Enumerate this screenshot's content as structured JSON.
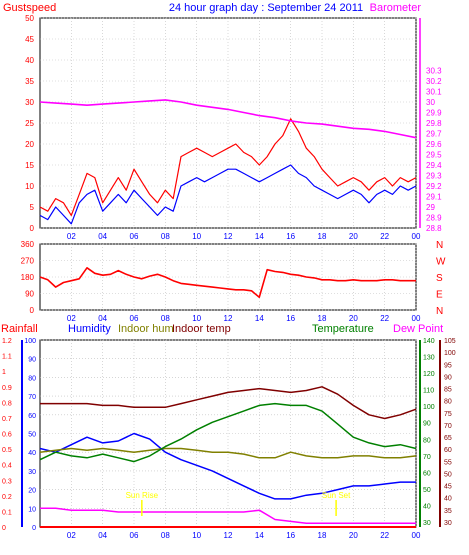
{
  "colors": {
    "background": "#ffffff",
    "gridline": "#bfbfbf",
    "axis": "#000000",
    "gustspeed": "#ff0000",
    "windspeed": "#0000ff",
    "barometer": "#ff00ff",
    "direction": "#ff0000",
    "rainfall": "#ff0000",
    "humidity": "#0000ff",
    "indoor_hum": "#808000",
    "indoor_temp": "#800000",
    "temperature": "#008000",
    "dew_point": "#ff00ff",
    "sun_marker": "#ffff00",
    "title": "#0000ff"
  },
  "header": {
    "title": "24 hour graph day : September 24 2011"
  },
  "chart_data": [
    {
      "type": "line",
      "panel": "wind-barometer",
      "title": "24 hour graph day : September 24 2011",
      "ylabel_left": "Gustspeed",
      "ylabel_right": "Barometer",
      "x_ticks": [
        "02",
        "04",
        "06",
        "08",
        "10",
        "12",
        "14",
        "16",
        "18",
        "20",
        "22",
        "00"
      ],
      "xlim": [
        0,
        24
      ],
      "ylim_left": [
        0,
        50
      ],
      "yticks_left": [
        "0",
        "5",
        "10",
        "15",
        "20",
        "25",
        "30",
        "35",
        "40",
        "45",
        "50"
      ],
      "ylim_right": [
        28.8,
        30.8
      ],
      "yticks_right": [
        "28.8",
        "28.9",
        "29",
        "29.1",
        "29.2",
        "29.3",
        "29.4",
        "29.5",
        "29.6",
        "29.7",
        "29.8",
        "29.9",
        "30",
        "30.1",
        "30.2",
        "30.3"
      ],
      "yticks_right_display": [
        "28.8",
        "28.9",
        "29",
        "29.1",
        "29.2",
        "29.3",
        "29.4",
        "29.5",
        "29.6",
        "29.7",
        "29.8",
        "29.9",
        "30",
        "30.1",
        "30.2",
        "30.3"
      ],
      "grid": true,
      "series": [
        {
          "name": "Gustspeed",
          "axis": "left",
          "x": [
            0,
            0.5,
            1,
            1.5,
            2,
            2.5,
            3,
            3.5,
            4,
            4.5,
            5,
            5.5,
            6,
            6.5,
            7,
            7.5,
            8,
            8.5,
            9,
            9.5,
            10,
            10.5,
            11,
            11.5,
            12,
            12.5,
            13,
            13.5,
            14,
            14.5,
            15,
            15.5,
            16,
            16.5,
            17,
            17.5,
            18,
            18.5,
            19,
            19.5,
            20,
            20.5,
            21,
            21.5,
            22,
            22.5,
            23,
            23.5,
            24
          ],
          "values": [
            5,
            4,
            7,
            6,
            3,
            8,
            13,
            12,
            6,
            9,
            12,
            9,
            14,
            11,
            8,
            6,
            9,
            7,
            17,
            18,
            19,
            18,
            17,
            18,
            19,
            20,
            18,
            17,
            15,
            17,
            20,
            22,
            26,
            23,
            19,
            17,
            14,
            12,
            10,
            11,
            12,
            11,
            9,
            11,
            12,
            10,
            12,
            11,
            12
          ]
        },
        {
          "name": "Windspeed",
          "axis": "left",
          "x": [
            0,
            0.5,
            1,
            1.5,
            2,
            2.5,
            3,
            3.5,
            4,
            4.5,
            5,
            5.5,
            6,
            6.5,
            7,
            7.5,
            8,
            8.5,
            9,
            9.5,
            10,
            10.5,
            11,
            11.5,
            12,
            12.5,
            13,
            13.5,
            14,
            14.5,
            15,
            15.5,
            16,
            16.5,
            17,
            17.5,
            18,
            18.5,
            19,
            19.5,
            20,
            20.5,
            21,
            21.5,
            22,
            22.5,
            23,
            23.5,
            24
          ],
          "values": [
            3,
            2,
            5,
            3,
            1,
            6,
            8,
            9,
            4,
            6,
            8,
            6,
            9,
            7,
            5,
            3,
            5,
            4,
            10,
            11,
            12,
            11,
            12,
            13,
            14,
            14,
            13,
            12,
            11,
            12,
            13,
            14,
            15,
            13,
            12,
            10,
            9,
            8,
            7,
            8,
            9,
            8,
            6,
            8,
            9,
            8,
            10,
            9,
            10
          ]
        },
        {
          "name": "Barometer",
          "axis": "right",
          "x": [
            0,
            1,
            2,
            3,
            4,
            5,
            6,
            7,
            8,
            9,
            10,
            11,
            12,
            13,
            14,
            15,
            16,
            17,
            18,
            19,
            20,
            21,
            22,
            23,
            24
          ],
          "values": [
            30.0,
            29.99,
            29.98,
            29.97,
            29.98,
            29.99,
            30.0,
            30.01,
            30.02,
            30.0,
            29.97,
            29.95,
            29.93,
            29.9,
            29.87,
            29.85,
            29.82,
            29.8,
            29.79,
            29.77,
            29.75,
            29.74,
            29.72,
            29.69,
            29.66
          ]
        }
      ]
    },
    {
      "type": "line",
      "panel": "wind-direction",
      "ylim": [
        0,
        360
      ],
      "yticks": [
        "0",
        "90",
        "180",
        "270",
        "360"
      ],
      "right_labels": [
        "N",
        "W",
        "S",
        "E",
        "N"
      ],
      "x_ticks": [
        "02",
        "04",
        "06",
        "08",
        "10",
        "12",
        "14",
        "16",
        "18",
        "20",
        "22",
        "00"
      ],
      "grid": true,
      "series": [
        {
          "name": "Wind direction",
          "x": [
            0,
            0.5,
            1,
            1.5,
            2,
            2.5,
            3,
            3.5,
            4,
            4.5,
            5,
            5.5,
            6,
            6.5,
            7,
            7.5,
            8,
            8.5,
            9,
            9.5,
            10,
            10.5,
            11,
            11.5,
            12,
            12.5,
            13,
            13.5,
            14,
            14.5,
            15,
            15.5,
            16,
            16.5,
            17,
            17.5,
            18,
            18.5,
            19,
            19.5,
            20,
            20.5,
            21,
            21.5,
            22,
            22.5,
            23,
            23.5,
            24
          ],
          "values": [
            180,
            165,
            125,
            150,
            160,
            170,
            230,
            200,
            190,
            195,
            215,
            195,
            180,
            170,
            185,
            195,
            180,
            160,
            145,
            140,
            135,
            130,
            125,
            120,
            115,
            110,
            110,
            105,
            70,
            220,
            210,
            205,
            195,
            190,
            180,
            175,
            165,
            165,
            160,
            160,
            165,
            160,
            160,
            160,
            165,
            165,
            160,
            160,
            160
          ]
        }
      ]
    },
    {
      "type": "line",
      "panel": "humidity-temperature",
      "legend": [
        "Rainfall",
        "Humidity",
        "Indoor hum",
        "Indoor temp",
        "Temperature",
        "Dew Point"
      ],
      "x_ticks": [
        "02",
        "04",
        "06",
        "08",
        "10",
        "12",
        "14",
        "16",
        "18",
        "20",
        "22",
        "00"
      ],
      "yticks_rainfall": [
        "0",
        "0.1",
        "0.2",
        "0.3",
        "0.4",
        "0.5",
        "0.6",
        "0.7",
        "0.8",
        "0.9",
        "1",
        "1.1",
        "1.2"
      ],
      "yticks_humidity": [
        "0",
        "10",
        "20",
        "30",
        "40",
        "50",
        "60",
        "70",
        "80",
        "90",
        "100"
      ],
      "yticks_temperature": [
        "30",
        "40",
        "50",
        "60",
        "70",
        "80",
        "90",
        "100",
        "110",
        "120",
        "130",
        "140"
      ],
      "yticks_dewpoint": [
        "30",
        "35",
        "40",
        "45",
        "50",
        "55",
        "60",
        "65",
        "70",
        "75",
        "80",
        "85",
        "90",
        "95",
        "100",
        "105"
      ],
      "annotations": [
        "Sun Rise",
        "Sun Set"
      ],
      "grid": true,
      "series": [
        {
          "name": "Rainfall",
          "axis": "rainfall",
          "ylim": [
            0,
            1.2
          ],
          "x": [
            0,
            24
          ],
          "values": [
            0,
            0
          ]
        },
        {
          "name": "Humidity",
          "axis": "humidity",
          "ylim": [
            0,
            100
          ],
          "x": [
            0,
            1,
            2,
            3,
            4,
            5,
            6,
            7,
            8,
            9,
            10,
            11,
            12,
            13,
            14,
            15,
            16,
            17,
            18,
            19,
            20,
            21,
            22,
            23,
            24
          ],
          "values": [
            42,
            40,
            44,
            48,
            45,
            46,
            50,
            47,
            40,
            36,
            33,
            30,
            26,
            22,
            18,
            15,
            15,
            17,
            18,
            20,
            22,
            22,
            23,
            24,
            24
          ]
        },
        {
          "name": "Indoor hum",
          "axis": "humidity",
          "ylim": [
            0,
            100
          ],
          "x": [
            0,
            1,
            2,
            3,
            4,
            5,
            6,
            7,
            8,
            9,
            10,
            11,
            12,
            13,
            14,
            15,
            16,
            17,
            18,
            19,
            20,
            21,
            22,
            23,
            24
          ],
          "values": [
            40,
            41,
            42,
            41,
            42,
            41,
            40,
            41,
            42,
            42,
            41,
            40,
            40,
            39,
            37,
            37,
            40,
            38,
            37,
            37,
            38,
            38,
            37,
            37,
            38
          ]
        },
        {
          "name": "Indoor temp",
          "axis": "humidity",
          "ylim": [
            0,
            100
          ],
          "x": [
            0,
            1,
            2,
            3,
            4,
            5,
            6,
            7,
            8,
            9,
            10,
            11,
            12,
            13,
            14,
            15,
            16,
            17,
            18,
            19,
            20,
            21,
            22,
            23,
            24
          ],
          "values": [
            66,
            66,
            66,
            66,
            65,
            65,
            64,
            64,
            64,
            66,
            68,
            70,
            72,
            73,
            74,
            73,
            72,
            73,
            75,
            71,
            65,
            60,
            58,
            60,
            63
          ]
        },
        {
          "name": "Temperature",
          "axis": "humidity",
          "ylim": [
            0,
            100
          ],
          "x": [
            0,
            1,
            2,
            3,
            4,
            5,
            6,
            7,
            8,
            9,
            10,
            11,
            12,
            13,
            14,
            15,
            16,
            17,
            18,
            19,
            20,
            21,
            22,
            23,
            24
          ],
          "values": [
            36,
            40,
            38,
            37,
            39,
            37,
            35,
            38,
            43,
            47,
            52,
            56,
            59,
            62,
            65,
            66,
            65,
            65,
            62,
            55,
            48,
            45,
            43,
            44,
            42
          ]
        },
        {
          "name": "Dew Point",
          "axis": "humidity",
          "ylim": [
            0,
            100
          ],
          "x": [
            0,
            1,
            2,
            3,
            4,
            5,
            6,
            7,
            8,
            9,
            10,
            11,
            12,
            13,
            14,
            15,
            16,
            17,
            18,
            19,
            20,
            21,
            22,
            23,
            24
          ],
          "values": [
            10,
            10,
            9,
            9,
            9,
            8,
            8,
            8,
            8,
            8,
            8,
            8,
            8,
            8,
            9,
            4,
            3,
            2,
            2,
            2,
            2,
            2,
            2,
            2,
            2
          ]
        }
      ]
    }
  ]
}
